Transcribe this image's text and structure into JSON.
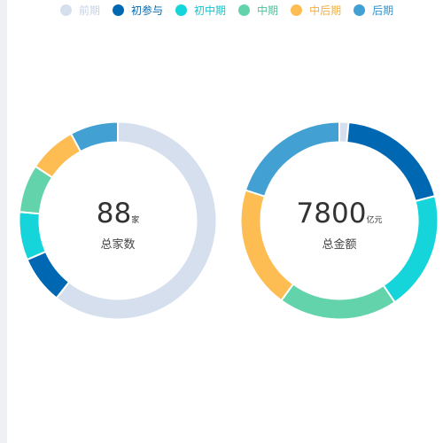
{
  "legend": {
    "items": [
      {
        "label": "前期",
        "color": "#d5dfee",
        "text_color": "#c7d2e4"
      },
      {
        "label": "初参与",
        "color": "#0068b3",
        "text_color": "#0068b3"
      },
      {
        "label": "初中期",
        "color": "#15d5da",
        "text_color": "#15c5cc"
      },
      {
        "label": "中期",
        "color": "#62d3aa",
        "text_color": "#50c29a"
      },
      {
        "label": "中后期",
        "color": "#febd52",
        "text_color": "#f5b040"
      },
      {
        "label": "后期",
        "color": "#42a0d2",
        "text_color": "#3595cc"
      }
    ]
  },
  "chart_data": [
    {
      "type": "pie",
      "variant": "donut",
      "center_value": "88",
      "center_unit": "家",
      "center_label": "总家数",
      "labels": [
        "前期",
        "初参与",
        "初中期",
        "中期",
        "中后期",
        "后期"
      ],
      "values": [
        54,
        7,
        7,
        7,
        7,
        7
      ],
      "colors": [
        "#d5dfee",
        "#0068b3",
        "#15d5da",
        "#62d3aa",
        "#febd52",
        "#42a0d2"
      ]
    },
    {
      "type": "pie",
      "variant": "donut",
      "center_value": "7800",
      "center_unit": "亿元",
      "center_label": "总金额",
      "labels": [
        "前期",
        "初参与",
        "初中期",
        "中期",
        "中后期",
        "后期"
      ],
      "values": [
        1.5,
        19.5,
        19.5,
        19.5,
        20,
        20
      ],
      "colors": [
        "#d5dfee",
        "#0068b3",
        "#15d5da",
        "#62d3aa",
        "#febd52",
        "#42a0d2"
      ]
    }
  ]
}
